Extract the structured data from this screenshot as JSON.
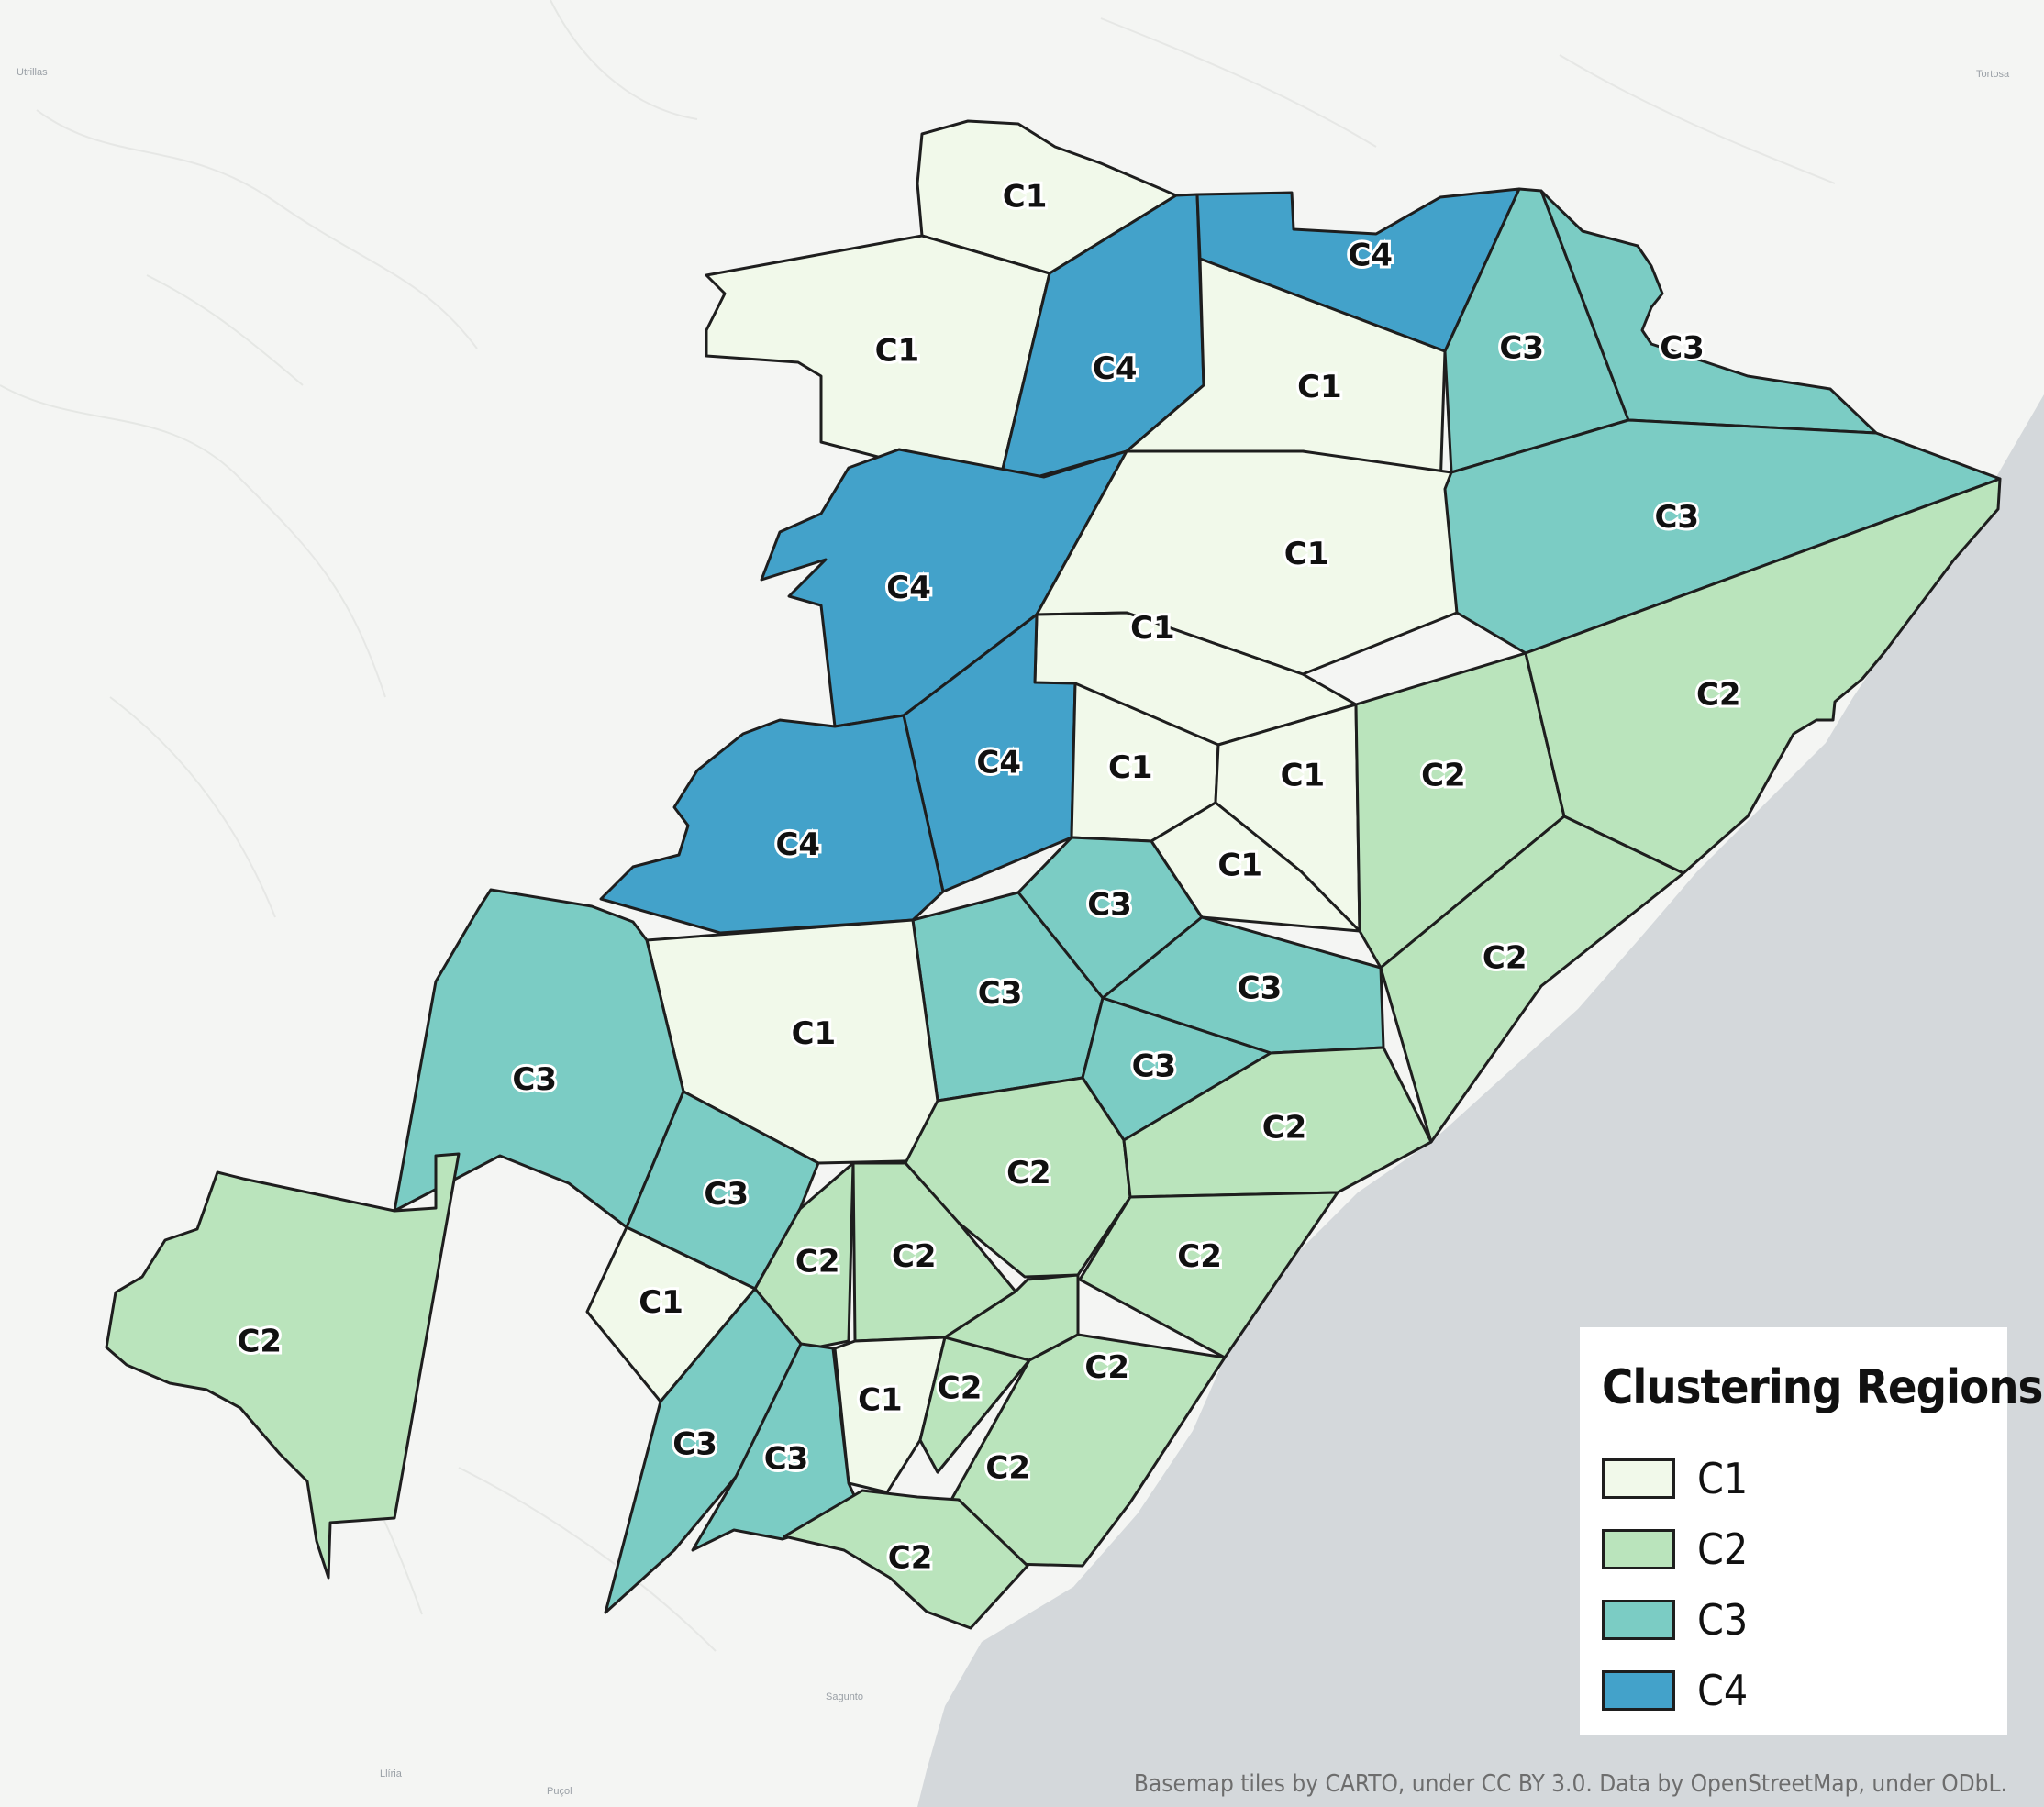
{
  "basemap": {
    "land_color": "#f4f5f3",
    "sea_color": "#d4d8db",
    "places": [
      "Utrillas",
      "Tortosa",
      "Sagunto",
      "Llíria",
      "Puçol"
    ]
  },
  "legend": {
    "title": "Clustering Regions",
    "items": [
      {
        "label": "C1",
        "color": "#f1f9ea"
      },
      {
        "label": "C2",
        "color": "#bae4bc"
      },
      {
        "label": "C3",
        "color": "#7bccc4"
      },
      {
        "label": "C4",
        "color": "#43a2ca"
      }
    ]
  },
  "region_labels": [
    "C1",
    "C1",
    "C4",
    "C4",
    "C1",
    "C3",
    "C3",
    "C4",
    "C1",
    "C3",
    "C1",
    "C4",
    "C4",
    "C1",
    "C1",
    "C2",
    "C2",
    "C1",
    "C3",
    "C2",
    "C3",
    "C3",
    "C3",
    "C1",
    "C3",
    "C2",
    "C2",
    "C3",
    "C2",
    "C2",
    "C2",
    "C1",
    "C2",
    "C1",
    "C2",
    "C2",
    "C3",
    "C3",
    "C2",
    "C2"
  ],
  "attribution": "Basemap tiles by CARTO, under CC BY 3.0. Data by OpenStreetMap, under ODbL."
}
